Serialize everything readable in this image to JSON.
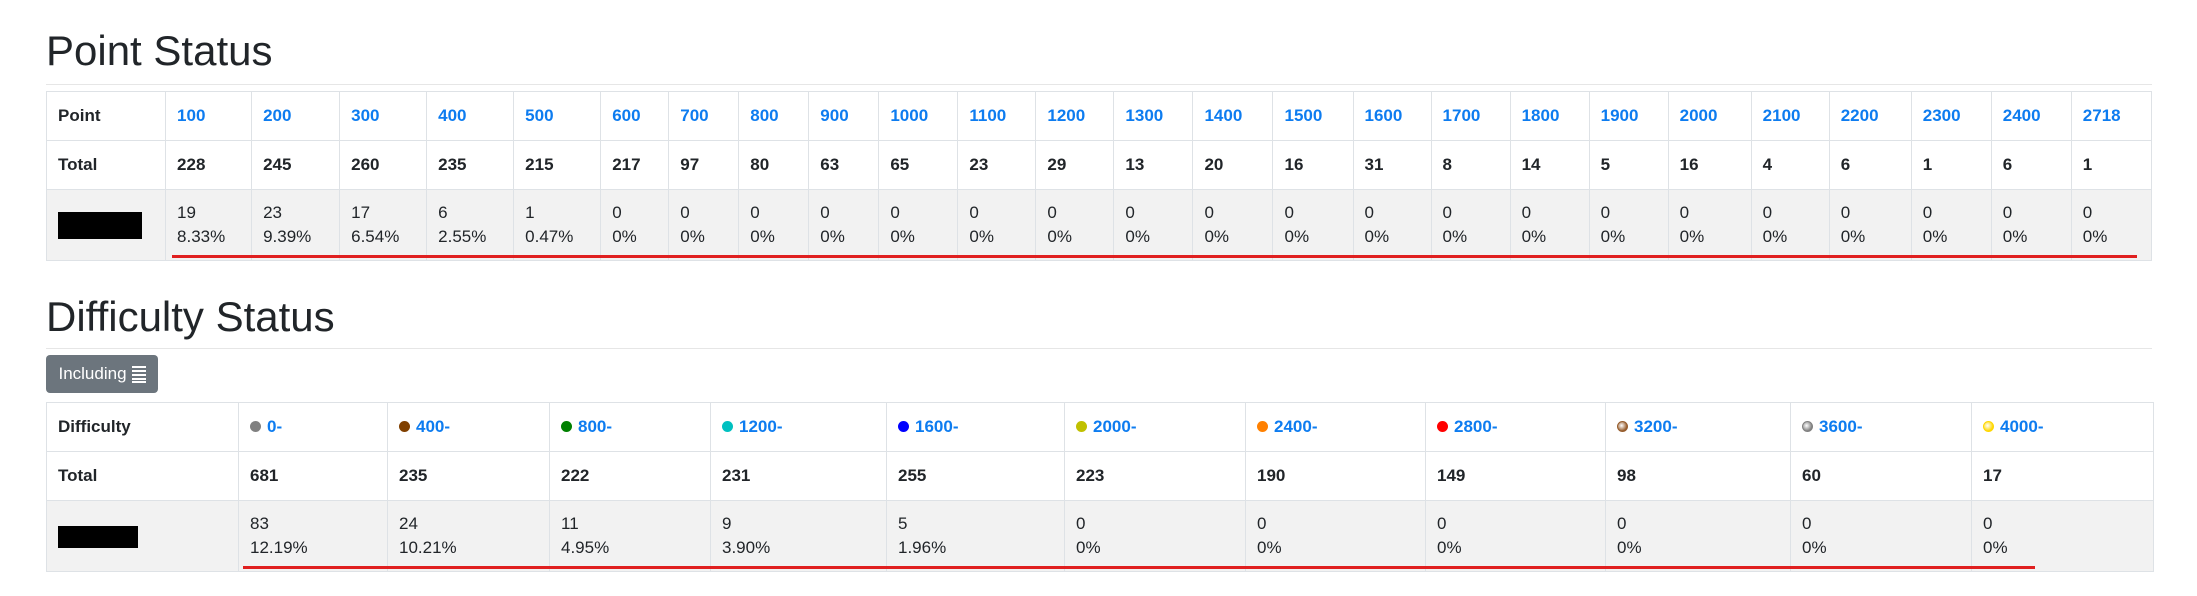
{
  "point_status": {
    "title": "Point Status",
    "header_label": "Point",
    "total_label": "Total",
    "columns": [
      {
        "point": "100",
        "total": "228",
        "count": "19",
        "percent": "8.33%"
      },
      {
        "point": "200",
        "total": "245",
        "count": "23",
        "percent": "9.39%"
      },
      {
        "point": "300",
        "total": "260",
        "count": "17",
        "percent": "6.54%"
      },
      {
        "point": "400",
        "total": "235",
        "count": "6",
        "percent": "2.55%"
      },
      {
        "point": "500",
        "total": "215",
        "count": "1",
        "percent": "0.47%"
      },
      {
        "point": "600",
        "total": "217",
        "count": "0",
        "percent": "0%"
      },
      {
        "point": "700",
        "total": "97",
        "count": "0",
        "percent": "0%"
      },
      {
        "point": "800",
        "total": "80",
        "count": "0",
        "percent": "0%"
      },
      {
        "point": "900",
        "total": "63",
        "count": "0",
        "percent": "0%"
      },
      {
        "point": "1000",
        "total": "65",
        "count": "0",
        "percent": "0%"
      },
      {
        "point": "1100",
        "total": "23",
        "count": "0",
        "percent": "0%"
      },
      {
        "point": "1200",
        "total": "29",
        "count": "0",
        "percent": "0%"
      },
      {
        "point": "1300",
        "total": "13",
        "count": "0",
        "percent": "0%"
      },
      {
        "point": "1400",
        "total": "20",
        "count": "0",
        "percent": "0%"
      },
      {
        "point": "1500",
        "total": "16",
        "count": "0",
        "percent": "0%"
      },
      {
        "point": "1600",
        "total": "31",
        "count": "0",
        "percent": "0%"
      },
      {
        "point": "1700",
        "total": "8",
        "count": "0",
        "percent": "0%"
      },
      {
        "point": "1800",
        "total": "14",
        "count": "0",
        "percent": "0%"
      },
      {
        "point": "1900",
        "total": "5",
        "count": "0",
        "percent": "0%"
      },
      {
        "point": "2000",
        "total": "16",
        "count": "0",
        "percent": "0%"
      },
      {
        "point": "2100",
        "total": "4",
        "count": "0",
        "percent": "0%"
      },
      {
        "point": "2200",
        "total": "6",
        "count": "0",
        "percent": "0%"
      },
      {
        "point": "2300",
        "total": "1",
        "count": "0",
        "percent": "0%"
      },
      {
        "point": "2400",
        "total": "6",
        "count": "0",
        "percent": "0%"
      },
      {
        "point": "2718",
        "total": "1",
        "count": "0",
        "percent": "0%"
      }
    ]
  },
  "difficulty_status": {
    "title": "Difficulty Status",
    "including_button": "Including",
    "including_icon": "list-icon",
    "header_label": "Difficulty",
    "total_label": "Total",
    "columns": [
      {
        "label": "0-",
        "color": "#808080",
        "icon": "gray-circle-icon",
        "total": "681",
        "count": "83",
        "percent": "12.19%"
      },
      {
        "label": "400-",
        "color": "#804000",
        "icon": "brown-circle-icon",
        "total": "235",
        "count": "24",
        "percent": "10.21%"
      },
      {
        "label": "800-",
        "color": "#008000",
        "icon": "green-circle-icon",
        "total": "222",
        "count": "11",
        "percent": "4.95%"
      },
      {
        "label": "1200-",
        "color": "#00C0C0",
        "icon": "cyan-circle-icon",
        "total": "231",
        "count": "9",
        "percent": "3.90%"
      },
      {
        "label": "1600-",
        "color": "#0000FF",
        "icon": "blue-circle-icon",
        "total": "255",
        "count": "5",
        "percent": "1.96%"
      },
      {
        "label": "2000-",
        "color": "#C0C000",
        "icon": "yellow-circle-icon",
        "total": "223",
        "count": "0",
        "percent": "0%"
      },
      {
        "label": "2400-",
        "color": "#FF8000",
        "icon": "orange-circle-icon",
        "total": "190",
        "count": "0",
        "percent": "0%"
      },
      {
        "label": "2800-",
        "color": "#FF0000",
        "icon": "red-circle-icon",
        "total": "149",
        "count": "0",
        "percent": "0%"
      },
      {
        "label": "3200-",
        "color": "#965C2C",
        "icon": "bronze-circle-icon",
        "total": "98",
        "count": "0",
        "percent": "0%"
      },
      {
        "label": "3600-",
        "color": "#808080",
        "icon": "silver-circle-icon",
        "total": "60",
        "count": "0",
        "percent": "0%"
      },
      {
        "label": "4000-",
        "color": "#FFD700",
        "icon": "gold-circle-icon",
        "total": "17",
        "count": "0",
        "percent": "0%"
      }
    ]
  }
}
